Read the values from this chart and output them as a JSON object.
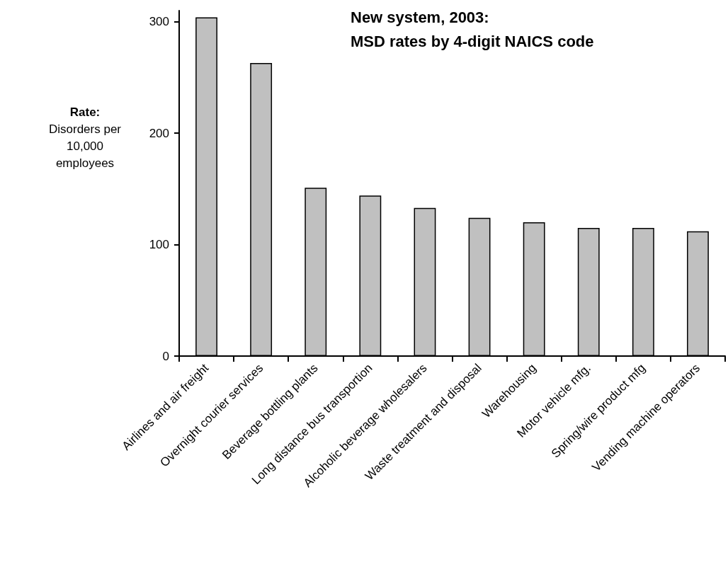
{
  "chart_data": {
    "type": "bar",
    "title": "New system, 2003:\nMSD rates by 4-digit NAICS code",
    "ylabel": "Rate:\nDisorders per\n10,000\nemployees",
    "categories": [
      "Airlines and air freight",
      "Overnight courier services",
      "Beverage bottling plants",
      "Long distance bus transportion",
      "Alcoholic beverage wholesalers",
      "Waste treatment and disposal",
      "Warehousing",
      "Motor vehicle mfg.",
      "Spring/wire product mfg",
      "Vending machine operators"
    ],
    "values": [
      304,
      263,
      151,
      144,
      133,
      124,
      120,
      115,
      115,
      112
    ],
    "color": "#c0c0c0",
    "ylim": [
      0,
      310
    ],
    "yticks": [
      0,
      100,
      200,
      300
    ],
    "grid": false
  }
}
